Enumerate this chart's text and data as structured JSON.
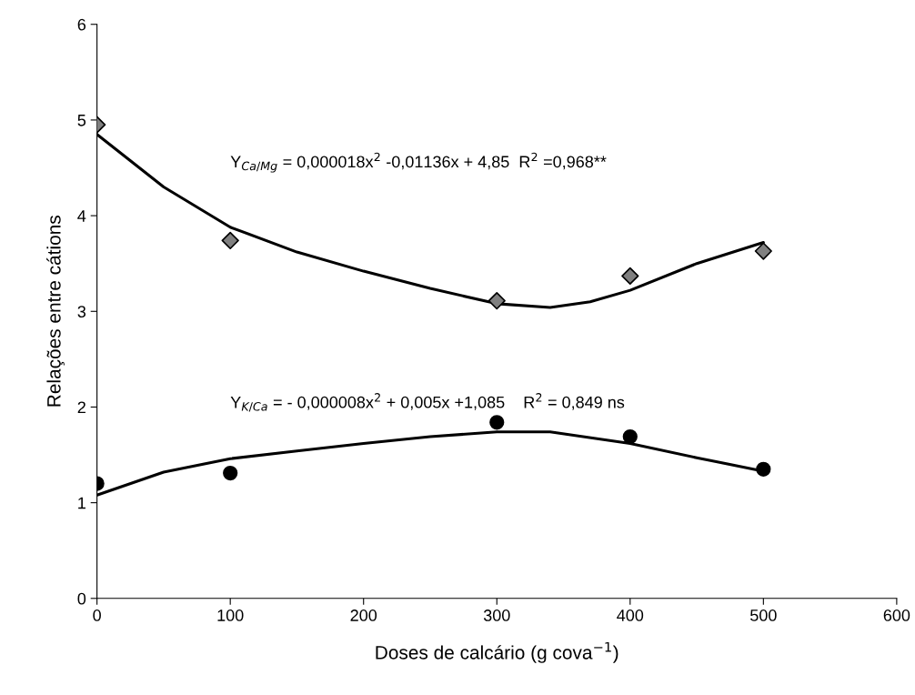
{
  "chart_data": {
    "type": "scatter",
    "xlabel": "Doses de calcário (g cova$^{−1}$)",
    "ylabel": "Relações entre cátions",
    "xlim": [
      0,
      600
    ],
    "xticks": [
      0,
      100,
      200,
      300,
      400,
      500,
      600
    ],
    "ylim": [
      0,
      6
    ],
    "yticks": [
      0,
      1,
      2,
      3,
      4,
      5,
      6
    ],
    "grid": false,
    "legend": false,
    "series": [
      {
        "marker": "diamond",
        "color": "#808080",
        "x": [
          0,
          100,
          300,
          400,
          500
        ],
        "values": [
          4.95,
          3.74,
          3.11,
          3.37,
          3.63
        ]
      },
      {
        "type": "line",
        "marker": "none",
        "color": "#000000",
        "x": [
          0,
          50,
          100,
          150,
          200,
          250,
          300,
          340,
          370,
          400,
          450,
          500
        ],
        "values": [
          4.85,
          4.3,
          3.88,
          3.62,
          3.42,
          3.24,
          3.08,
          3.04,
          3.1,
          3.22,
          3.5,
          3.72
        ]
      },
      {
        "marker": "circle",
        "color": "#000000",
        "x": [
          0,
          100,
          300,
          400,
          500
        ],
        "values": [
          1.2,
          1.31,
          1.84,
          1.69,
          1.35
        ]
      },
      {
        "type": "line",
        "marker": "none",
        "color": "#000000",
        "x": [
          0,
          50,
          100,
          150,
          200,
          250,
          300,
          340,
          400,
          450,
          500
        ],
        "values": [
          1.08,
          1.32,
          1.46,
          1.54,
          1.62,
          1.69,
          1.74,
          1.74,
          1.62,
          1.47,
          1.33
        ]
      }
    ],
    "annotations": [
      "Y$_{Ca/Mg}$ = 0,000018x$^{2}$ -0,01136x + 4,85  R$^{2}$ =0,968**",
      "Y$_{K/Ca}$ = - 0,000008x$^{2}$ + 0,005x +1,085    R$^{2}$ = 0,849 ns"
    ]
  }
}
